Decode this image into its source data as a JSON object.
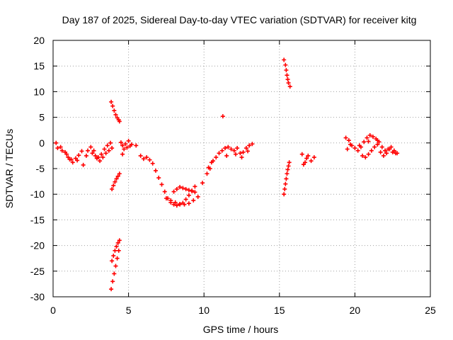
{
  "chart_data": {
    "type": "scatter",
    "title": "Day 187 of 2025, Sidereal Day-to-day VTEC variation (SDTVAR) for receiver kitg",
    "xlabel": "GPS time / hours",
    "ylabel": "SDTVAR / TECUs",
    "xlim": [
      0,
      25
    ],
    "ylim": [
      -30,
      20
    ],
    "xticks": [
      "0",
      "5",
      "10",
      "15",
      "20",
      "25"
    ],
    "yticks": [
      "-30",
      "-25",
      "-20",
      "-15",
      "-10",
      "-5",
      "0",
      "5",
      "10",
      "15",
      "20"
    ],
    "grid": true,
    "marker": "+",
    "color": "#ff0000",
    "series": [
      {
        "name": "SDTVAR",
        "x": [
          0.2,
          0.5,
          0.8,
          1.0,
          1.2,
          1.5,
          1.7,
          1.9,
          0.3,
          0.6,
          0.9,
          1.1,
          1.3,
          1.6,
          2.0,
          2.3,
          2.6,
          2.8,
          3.0,
          3.2,
          3.4,
          3.6,
          3.8,
          2.5,
          2.7,
          2.9,
          3.1,
          3.3,
          3.5,
          3.7,
          3.9,
          2.2,
          3.85,
          3.95,
          4.05,
          4.15,
          4.25,
          4.35,
          4.4,
          3.9,
          4.0,
          4.1,
          4.2,
          4.3,
          4.4,
          3.85,
          3.95,
          4.05,
          4.15,
          4.25,
          4.35,
          3.9,
          4.0,
          4.1,
          4.2,
          4.3,
          4.4,
          4.5,
          4.6,
          4.8,
          5.0,
          5.2,
          4.7,
          4.9,
          5.1,
          4.6,
          5.5,
          5.8,
          6.0,
          6.2,
          6.4,
          6.6,
          6.8,
          7.0,
          7.2,
          7.4,
          7.6,
          7.8,
          8.0,
          8.2,
          8.4,
          8.6,
          8.8,
          9.0,
          9.2,
          9.4,
          8.0,
          8.2,
          8.4,
          8.6,
          8.8,
          9.0,
          9.2,
          9.4,
          7.5,
          7.8,
          8.1,
          8.4,
          8.7,
          9.0,
          9.3,
          9.6,
          9.9,
          10.2,
          10.4,
          10.6,
          10.8,
          11.0,
          11.2,
          11.4,
          11.6,
          11.8,
          12.0,
          12.2,
          12.4,
          12.6,
          12.8,
          13.0,
          13.2,
          10.3,
          10.5,
          11.5,
          12.1,
          12.5,
          12.9,
          11.25,
          15.3,
          15.4,
          15.45,
          15.5,
          15.55,
          15.6,
          15.7,
          15.3,
          15.35,
          15.4,
          15.45,
          15.5,
          15.55,
          15.6,
          15.65,
          16.5,
          16.7,
          16.9,
          17.1,
          17.3,
          16.6,
          16.8,
          19.4,
          19.6,
          19.8,
          20.0,
          20.2,
          20.4,
          20.6,
          20.8,
          21.0,
          21.2,
          21.4,
          21.6,
          21.8,
          22.0,
          22.2,
          22.4,
          22.6,
          22.8,
          19.5,
          19.7,
          20.5,
          20.7,
          20.9,
          21.1,
          21.3,
          21.5,
          21.7,
          21.9,
          22.1,
          22.3,
          22.5,
          22.7,
          20.3,
          20.9,
          21.5
        ],
        "y": [
          0.0,
          -0.8,
          -1.8,
          -2.8,
          -3.2,
          -3.0,
          -2.4,
          -1.6,
          -1.0,
          -1.5,
          -2.2,
          -3.2,
          -3.8,
          -3.4,
          -4.3,
          -1.5,
          -2.0,
          -2.5,
          -2.8,
          -2.2,
          -1.2,
          -0.5,
          0.0,
          -0.8,
          -1.5,
          -3.0,
          -3.5,
          -2.8,
          -2.0,
          -1.5,
          -1.0,
          -2.5,
          8.0,
          7.2,
          6.3,
          5.5,
          4.9,
          4.5,
          4.2,
          -9.0,
          -8.3,
          -7.6,
          -7.0,
          -6.5,
          -6.0,
          -28.5,
          -27.0,
          -25.5,
          -24.0,
          -22.5,
          -21.0,
          -23.0,
          -22.0,
          -21.0,
          -20.2,
          -19.5,
          -19.0,
          0.1,
          -0.5,
          -0.2,
          0.4,
          -0.3,
          -1.2,
          -0.9,
          -0.6,
          -2.2,
          -0.5,
          -2.5,
          -3.1,
          -2.8,
          -3.3,
          -4.0,
          -5.4,
          -6.8,
          -8.1,
          -9.5,
          -10.8,
          -11.6,
          -12.0,
          -12.2,
          -12.0,
          -11.7,
          -11.0,
          -10.2,
          -9.3,
          -8.5,
          -9.5,
          -9.0,
          -8.6,
          -8.8,
          -9.0,
          -9.2,
          -9.4,
          -9.6,
          -10.8,
          -11.2,
          -11.6,
          -11.9,
          -12.0,
          -11.8,
          -11.2,
          -10.5,
          -7.8,
          -6.0,
          -5.0,
          -3.5,
          -2.8,
          -2.0,
          -1.5,
          -1.0,
          -0.8,
          -1.2,
          -1.5,
          -1.0,
          -2.0,
          -1.8,
          -1.0,
          -0.5,
          -0.2,
          -4.8,
          -3.8,
          -2.5,
          -2.2,
          -2.8,
          -1.6,
          5.2,
          16.2,
          15.2,
          14.2,
          13.2,
          12.4,
          11.7,
          11.0,
          -10.0,
          -9.0,
          -8.0,
          -7.0,
          -6.0,
          -5.2,
          -4.5,
          -3.8,
          -2.2,
          -3.8,
          -2.5,
          -3.5,
          -2.8,
          -4.2,
          -3.0,
          1.0,
          0.5,
          -0.5,
          -1.0,
          -1.5,
          -0.8,
          0.2,
          1.0,
          1.5,
          1.2,
          0.8,
          0.2,
          -0.8,
          -1.5,
          -1.2,
          -0.8,
          -1.5,
          -2.0,
          -1.2,
          -0.3,
          -2.5,
          -2.8,
          -2.2,
          -1.5,
          -0.8,
          -0.3,
          -1.8,
          -2.5,
          -2.0,
          -1.2,
          -1.8,
          -2.0,
          -0.5,
          0.3,
          0.5
        ]
      }
    ]
  }
}
